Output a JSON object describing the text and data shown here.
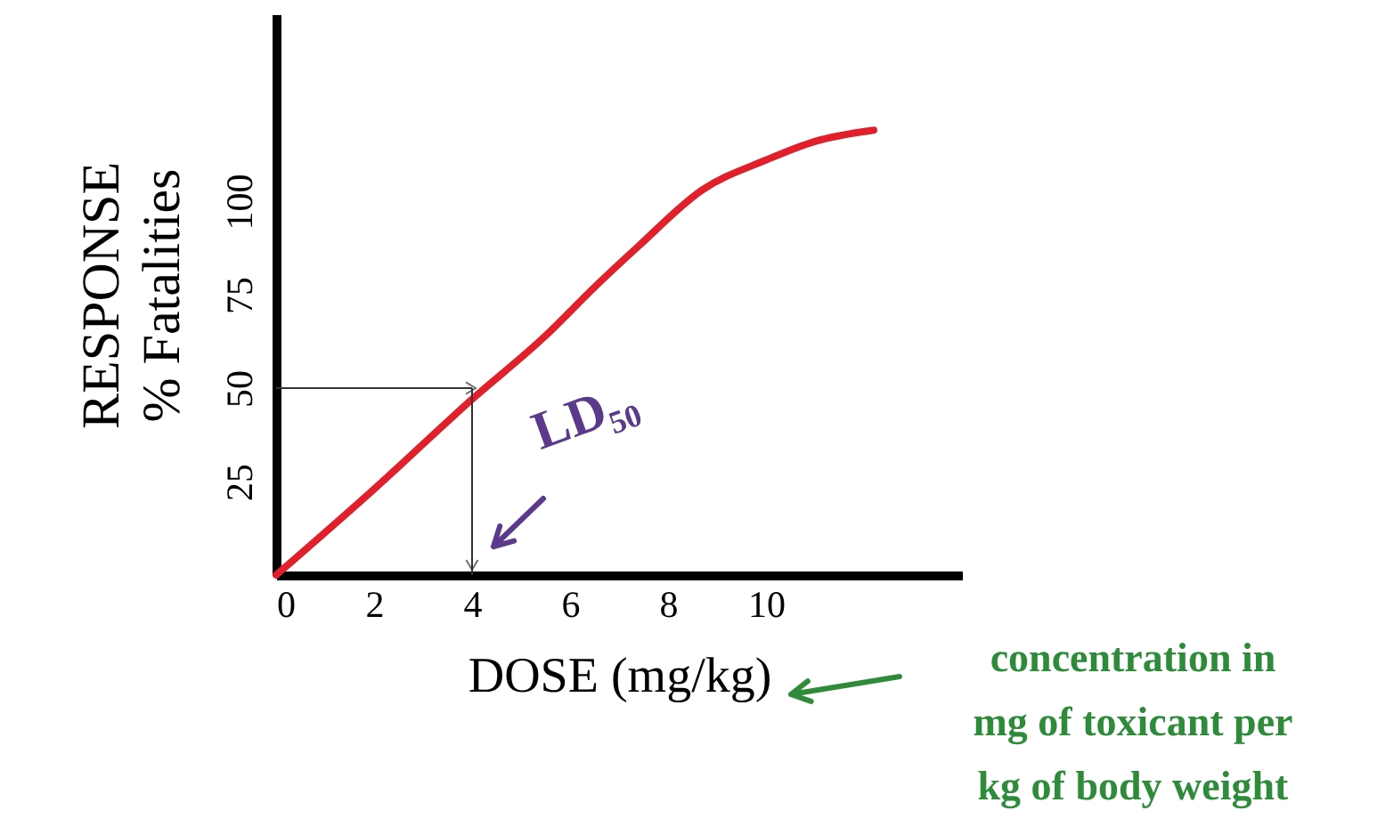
{
  "chart_data": {
    "type": "line",
    "xlabel": "DOSE (mg/kg)",
    "ylabel": "RESPONSE\n% Fatalities",
    "x": [
      0,
      2,
      4,
      5.5,
      6.5,
      7.4,
      8.7,
      10,
      11,
      12.2
    ],
    "series": [
      {
        "color": "#e0202a",
        "values": [
          0,
          23,
          47,
          64,
          77,
          88,
          103,
          111,
          116,
          119
        ]
      }
    ],
    "xlim": [
      0,
      14
    ],
    "ylim": [
      0,
      150
    ],
    "xticks": [
      0,
      2,
      4,
      6,
      8,
      10
    ],
    "yticks": [
      25,
      50,
      75,
      100
    ],
    "grid": false,
    "marker": "none",
    "line_style": "solid",
    "annotations": [
      {
        "text": "LD₅₀",
        "x": 4,
        "y": 50
      },
      "concentration in mg of toxicant per kg of body weight"
    ]
  }
}
